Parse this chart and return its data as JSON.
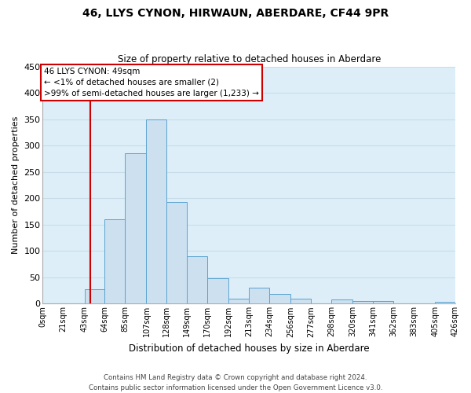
{
  "title": "46, LLYS CYNON, HIRWAUN, ABERDARE, CF44 9PR",
  "subtitle": "Size of property relative to detached houses in Aberdare",
  "xlabel": "Distribution of detached houses by size in Aberdare",
  "ylabel": "Number of detached properties",
  "bar_color": "#cce0f0",
  "bar_edge_color": "#5ba3d0",
  "background_color": "#ddeef8",
  "grid_color": "#c8dce8",
  "vline_color": "#cc0000",
  "vline_x": 49,
  "annotation_title": "46 LLYS CYNON: 49sqm",
  "annotation_line1": "← <1% of detached houses are smaller (2)",
  "annotation_line2": ">99% of semi-detached houses are larger (1,233) →",
  "bin_edges": [
    0,
    21,
    43,
    64,
    85,
    107,
    128,
    149,
    170,
    192,
    213,
    234,
    256,
    277,
    298,
    320,
    341,
    362,
    383,
    405,
    426
  ],
  "bin_labels": [
    "0sqm",
    "21sqm",
    "43sqm",
    "64sqm",
    "85sqm",
    "107sqm",
    "128sqm",
    "149sqm",
    "170sqm",
    "192sqm",
    "213sqm",
    "234sqm",
    "256sqm",
    "277sqm",
    "298sqm",
    "320sqm",
    "341sqm",
    "362sqm",
    "383sqm",
    "405sqm",
    "426sqm"
  ],
  "counts": [
    0,
    0,
    28,
    160,
    285,
    350,
    193,
    90,
    49,
    10,
    30,
    18,
    10,
    0,
    8,
    5,
    5,
    0,
    0,
    3
  ],
  "ylim": [
    0,
    450
  ],
  "yticks": [
    0,
    50,
    100,
    150,
    200,
    250,
    300,
    350,
    400,
    450
  ],
  "footer_line1": "Contains HM Land Registry data © Crown copyright and database right 2024.",
  "footer_line2": "Contains public sector information licensed under the Open Government Licence v3.0."
}
